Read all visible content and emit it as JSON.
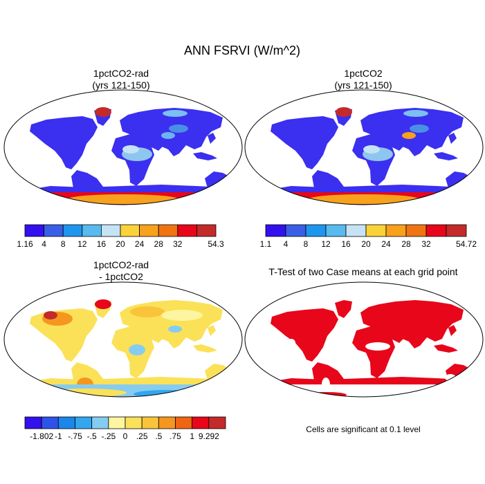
{
  "title": "ANN FSRVI (W/m^2)",
  "panels": [
    {
      "line1": "1pctCO2-rad",
      "line2": "(yrs 121-150)"
    },
    {
      "line1": "1pctCO2",
      "line2": "(yrs 121-150)"
    },
    {
      "line1": "1pctCO2-rad",
      "line2": "- 1pctCO2"
    },
    {
      "line1": "T-Test of two Case means at each grid point",
      "line2": ""
    }
  ],
  "colorbars": [
    {
      "labels": [
        "1.16",
        "4",
        "8",
        "12",
        "16",
        "20",
        "24",
        "28",
        "32",
        "54.3"
      ],
      "colors": [
        "#3311ee",
        "#3a5fe6",
        "#1e96ee",
        "#58baee",
        "#c5e3f5",
        "#fbd23a",
        "#f7a11c",
        "#f07512",
        "#e8061a",
        "#c42a2a"
      ]
    },
    {
      "labels": [
        "1.1",
        "4",
        "8",
        "12",
        "16",
        "20",
        "24",
        "28",
        "32",
        "54.72"
      ],
      "colors": [
        "#3311ee",
        "#3a5fe6",
        "#1e96ee",
        "#58baee",
        "#c5e3f5",
        "#fbd23a",
        "#f7a11c",
        "#f07512",
        "#e8061a",
        "#c42a2a"
      ]
    },
    {
      "labels": [
        "-1.802",
        "-1",
        "-.75",
        "-.5",
        "-.25",
        "0",
        ".25",
        ".5",
        ".75",
        "1",
        "9.292"
      ],
      "colors": [
        "#3311ee",
        "#2f52e8",
        "#1c86ea",
        "#33a6ee",
        "#86ccf2",
        "#fdf5a0",
        "#fbe158",
        "#f9c43a",
        "#f5961e",
        "#f06512",
        "#e8061a",
        "#c42a2a"
      ]
    }
  ],
  "note": "Cells are significant at 0.1 level"
}
